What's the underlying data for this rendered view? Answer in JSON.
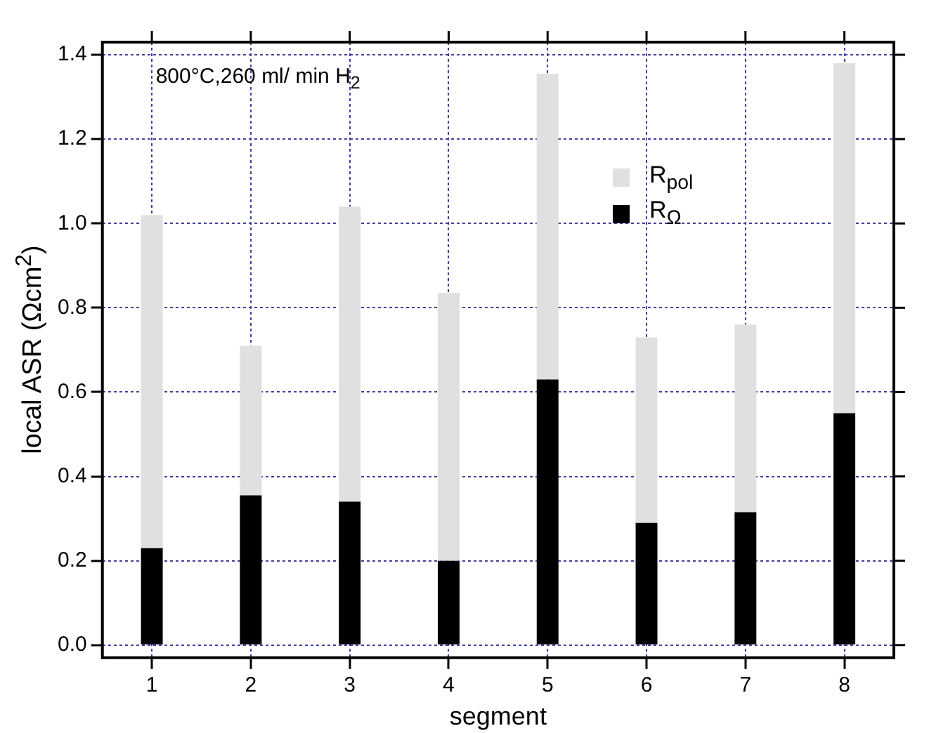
{
  "chart_data": {
    "type": "bar",
    "stacked": true,
    "xlabel": "segment",
    "ylabel": "local ASR (Ωcm$^{2}$)",
    "annotations": [
      "800°C,260 ml/ min H$_{2}$"
    ],
    "categories": [
      "1",
      "2",
      "3",
      "4",
      "5",
      "6",
      "7",
      "8"
    ],
    "series": [
      {
        "name": "R$_{Ω}$",
        "color": "#000000",
        "values": [
          0.23,
          0.355,
          0.34,
          0.2,
          0.63,
          0.29,
          0.315,
          0.55
        ]
      },
      {
        "name": "R$_{pol}$",
        "color": "#e0e0e0",
        "values": [
          0.79,
          0.355,
          0.7,
          0.635,
          0.725,
          0.44,
          0.445,
          0.83
        ]
      }
    ],
    "ylim": [
      -0.03,
      1.43
    ],
    "yticks": [
      {
        "value": 0,
        "label": "0.0"
      },
      {
        "value": 0.2,
        "label": "0.2"
      },
      {
        "value": 0.4,
        "label": "0.4"
      },
      {
        "value": 0.6,
        "label": "0.6"
      },
      {
        "value": 0.8,
        "label": "0.8"
      },
      {
        "value": 1,
        "label": "1.0"
      },
      {
        "value": 1.2,
        "label": "1.2"
      },
      {
        "value": 1.4,
        "label": "1.4"
      }
    ],
    "grid": true,
    "legend": "top right"
  }
}
